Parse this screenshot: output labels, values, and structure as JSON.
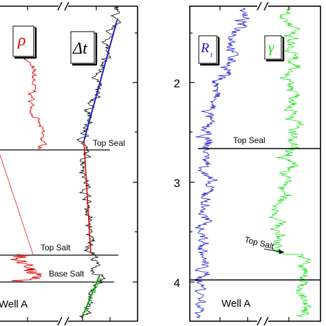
{
  "chart_data": [
    {
      "type": "line",
      "panel": "left",
      "caption": "Well A",
      "tick_labels": [
        "3",
        "4"
      ],
      "series": [
        {
          "name": "ρ",
          "color": "#e00000",
          "x": [
            0.23,
            0.5
          ],
          "y": [
            0.72,
            1.56
          ],
          "style": "log"
        },
        {
          "name": "Δt",
          "color": "#000000",
          "x": [
            0.55,
            0.82
          ],
          "y": [
            0.0,
            1.88
          ],
          "style": "log"
        },
        {
          "name": "ρ",
          "color": "#e00000",
          "x": [
            0.05,
            0.45
          ],
          "y": [
            2.97,
            3.22
          ],
          "style": "log"
        }
      ],
      "trend_lines": [
        {
          "color": "#1c1cc8",
          "from": {
            "x": 0.83,
            "y": 0.15
          },
          "to": {
            "x": 0.56,
            "y": 1.5
          }
        },
        {
          "color": "#e00000",
          "from": {
            "x": 0.56,
            "y": 1.52
          },
          "to": {
            "x": 0.62,
            "y": 2.9
          }
        },
        {
          "color": "#1a9a1a",
          "from": {
            "x": 0.58,
            "y": 3.2
          },
          "to": {
            "x": 0.7,
            "y": 3.56
          }
        },
        {
          "color": "#e00000",
          "from": {
            "x": 0.0,
            "y": 1.6
          },
          "to": {
            "x": 0.22,
            "y": 2.9
          },
          "thin": true
        }
      ],
      "horizons": [
        {
          "label": "Top Seal",
          "y": 1.6
        },
        {
          "label": "Top Salt",
          "y": 2.97
        },
        {
          "label": "Base Salt",
          "y": 3.22
        }
      ]
    },
    {
      "type": "line",
      "panel": "right",
      "caption": "Well A",
      "ytick_labels": [
        "2",
        "3",
        "4"
      ],
      "ylim": [
        1.05,
        4.3
      ],
      "series": [
        {
          "name": "R_t",
          "color": "#1414c8",
          "x": [
            0.05,
            0.45
          ],
          "y": [
            1.05,
            4.3
          ],
          "style": "log"
        },
        {
          "name": "γ",
          "color": "#10e010",
          "x": [
            0.55,
            0.95
          ],
          "y": [
            1.05,
            4.3
          ],
          "style": "log"
        }
      ],
      "horizons": [
        {
          "label": "Top Seal",
          "y": 2.67
        },
        {
          "label": "Top Salt",
          "y": 3.5,
          "arrow": true
        },
        {
          "label": "",
          "y": 3.95
        }
      ]
    }
  ],
  "colors": {
    "density": "#e00000",
    "sonic": "#000000",
    "trend_blue": "#1c1cc8",
    "resistivity": "#1414c8",
    "gamma": "#10e010",
    "trend_green": "#1a9a1a"
  }
}
